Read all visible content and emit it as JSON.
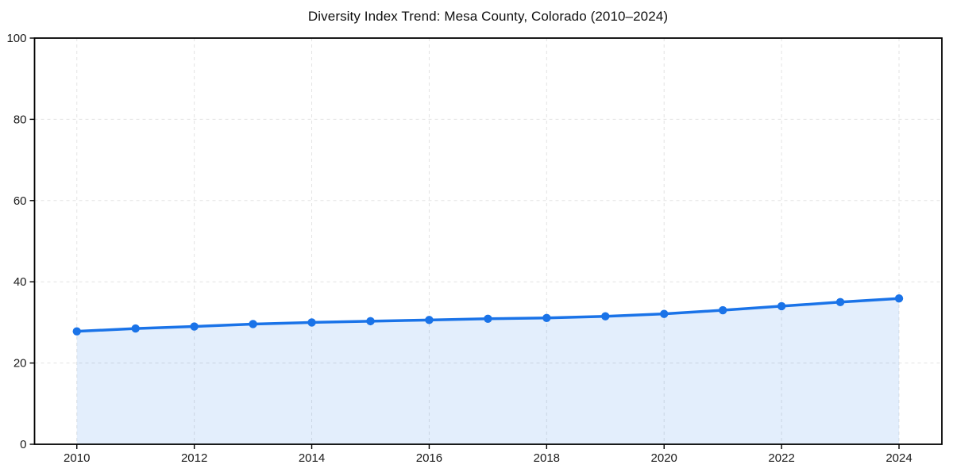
{
  "chart_data": {
    "type": "line",
    "title": "Diversity Index Trend: Mesa County, Colorado (2010–2024)",
    "x": [
      2010,
      2011,
      2012,
      2013,
      2014,
      2015,
      2016,
      2017,
      2018,
      2019,
      2020,
      2021,
      2022,
      2023,
      2024
    ],
    "values": [
      27.8,
      28.5,
      29.0,
      29.6,
      30.0,
      30.3,
      30.6,
      30.9,
      31.1,
      31.5,
      32.1,
      33.0,
      34.0,
      35.0,
      35.9
    ],
    "xlabel": "",
    "ylabel": "",
    "xlim": [
      2009.28,
      2024.73
    ],
    "ylim": [
      0,
      100
    ],
    "xticks": [
      2010,
      2012,
      2014,
      2016,
      2018,
      2020,
      2022,
      2024
    ],
    "xtick_labels": [
      "2010",
      "2012",
      "2014",
      "2016",
      "2018",
      "2020",
      "2022",
      "2024"
    ],
    "yticks": [
      0,
      20,
      40,
      60,
      80,
      100
    ],
    "ytick_labels": [
      "0",
      "20",
      "40",
      "60",
      "80",
      "100"
    ],
    "grid": true,
    "grid_style": "dashed",
    "legend_position": "none",
    "marker": "circle",
    "area_fill": true,
    "colors": {
      "line": "#1a73e8",
      "marker": "#1a73e8",
      "area": "rgba(26,115,232,0.12)",
      "grid": "#e3e3e3",
      "axis": "#000000",
      "title_text": "#0f0f0f",
      "tick_text": "#1a1a1a"
    }
  }
}
